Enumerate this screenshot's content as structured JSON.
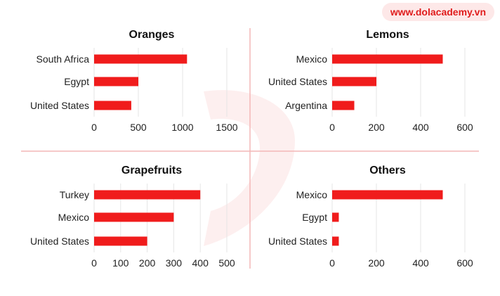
{
  "brand": {
    "text": "www.dolacademy.vn",
    "accent_color": "#e01d1d"
  },
  "bar_color": "#f01c1c",
  "chart_data": [
    {
      "type": "bar",
      "orientation": "horizontal",
      "title": "Oranges",
      "categories": [
        "South Africa",
        "Egypt",
        "United States"
      ],
      "values": [
        1050,
        500,
        420
      ],
      "xlim": [
        0,
        1500
      ],
      "xticks": [
        0,
        500,
        1000,
        1500
      ],
      "grid": true
    },
    {
      "type": "bar",
      "orientation": "horizontal",
      "title": "Lemons",
      "categories": [
        "Mexico",
        "United States",
        "Argentina"
      ],
      "values": [
        500,
        200,
        100
      ],
      "xlim": [
        0,
        600
      ],
      "xticks": [
        0,
        200,
        400,
        600
      ],
      "grid": true
    },
    {
      "type": "bar",
      "orientation": "horizontal",
      "title": "Grapefruits",
      "categories": [
        "Turkey",
        "Mexico",
        "United States"
      ],
      "values": [
        400,
        300,
        200
      ],
      "xlim": [
        0,
        500
      ],
      "xticks": [
        0,
        100,
        200,
        300,
        400,
        500
      ],
      "grid": true
    },
    {
      "type": "bar",
      "orientation": "horizontal",
      "title": "Others",
      "categories": [
        "Mexico",
        "Egypt",
        "United States"
      ],
      "values": [
        500,
        30,
        30
      ],
      "xlim": [
        0,
        600
      ],
      "xticks": [
        0,
        200,
        400,
        600
      ],
      "grid": true
    }
  ]
}
